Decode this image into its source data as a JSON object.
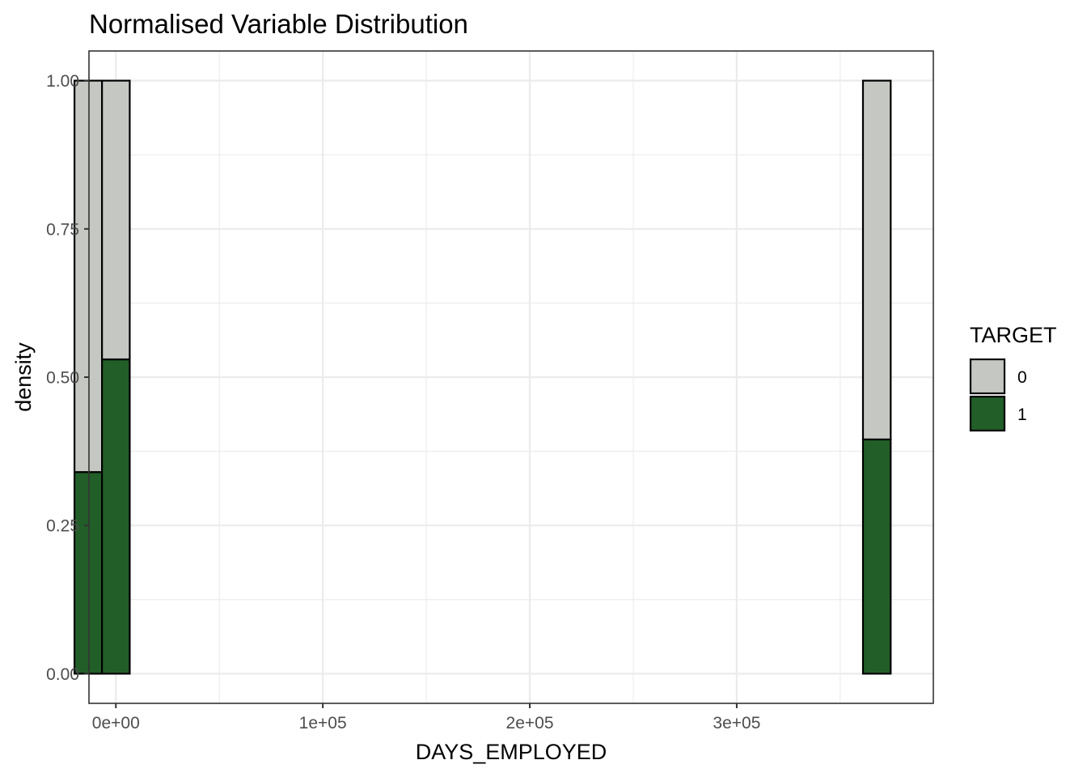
{
  "chart_data": {
    "type": "bar",
    "subtype": "stacked-histogram-normalised",
    "title": "Normalised Variable Distribution",
    "xlabel": "DAYS_EMPLOYED",
    "ylabel": "density",
    "xlim": [
      -13000,
      395000
    ],
    "ylim": [
      -0.05,
      1.05
    ],
    "x_ticks": [
      {
        "value": 0,
        "label": "0e+00"
      },
      {
        "value": 100000,
        "label": "1e+05"
      },
      {
        "value": 200000,
        "label": "2e+05"
      },
      {
        "value": 300000,
        "label": "3e+05"
      }
    ],
    "y_ticks": [
      {
        "value": 0,
        "label": "0.00"
      },
      {
        "value": 0.25,
        "label": "0.25"
      },
      {
        "value": 0.5,
        "label": "0.50"
      },
      {
        "value": 0.75,
        "label": "0.75"
      },
      {
        "value": 1.0,
        "label": "1.00"
      }
    ],
    "bins": [
      {
        "x_start": -20000,
        "x_end": -6700,
        "target_1": 0.34,
        "target_0": 0.66
      },
      {
        "x_start": -6700,
        "x_end": 6700,
        "target_1": 0.53,
        "target_0": 0.47
      },
      {
        "x_start": 361000,
        "x_end": 374400,
        "target_1": 0.395,
        "target_0": 0.605
      }
    ],
    "series": [
      {
        "name": "0",
        "color": "#c5c7c3"
      },
      {
        "name": "1",
        "color": "#225e28"
      }
    ],
    "legend": {
      "title": "TARGET",
      "position": "right"
    },
    "grid": true
  }
}
